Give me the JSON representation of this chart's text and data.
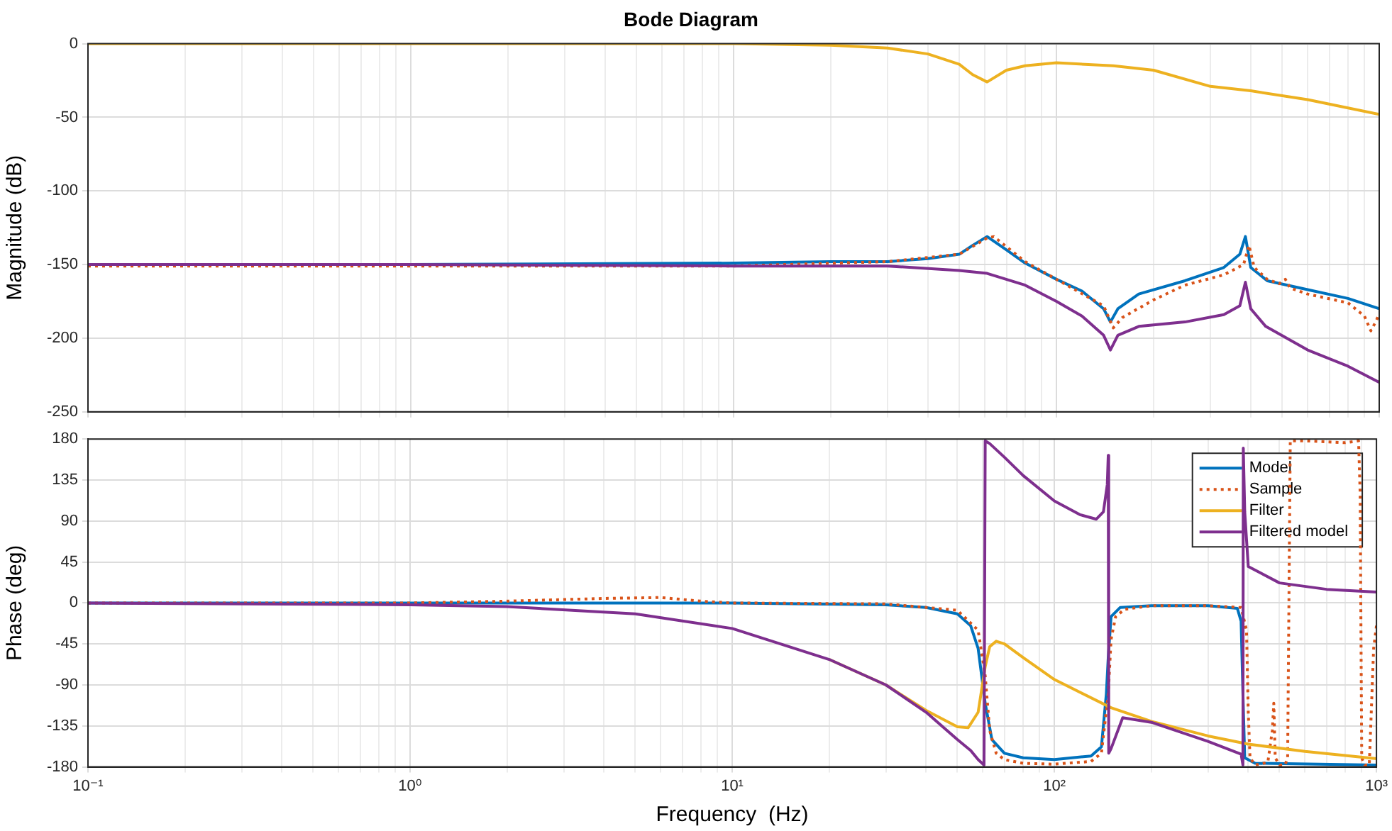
{
  "chart_data": [
    {
      "type": "line",
      "title": "Bode Diagram",
      "ylabel": "Magnitude (dB)",
      "log": "x",
      "grid": true,
      "legend": false,
      "tick_labels": "y",
      "marker": "none",
      "xlim": [
        0.1,
        1000
      ],
      "xticks": [
        0.1,
        1,
        10,
        100,
        1000
      ],
      "ylim": [
        -250,
        0
      ],
      "yticks": [
        -250,
        -200,
        -150,
        -100,
        -50,
        0
      ],
      "series": [
        {
          "color": "#0072bd",
          "line_style": "solid",
          "x": [
            0.1,
            1,
            10,
            20,
            30,
            40,
            50,
            55,
            61,
            70,
            80,
            100,
            120,
            140,
            147,
            155,
            180,
            250,
            330,
            370,
            385,
            400,
            450,
            600,
            800,
            1000
          ],
          "values": [
            -150,
            -150,
            -149,
            -148,
            -148,
            -146,
            -143,
            -137,
            -131,
            -140,
            -149,
            -160,
            -168,
            -180,
            -189,
            -180,
            -170,
            -161,
            -152,
            -143,
            -131,
            -152,
            -161,
            -167,
            -173,
            -180
          ]
        },
        {
          "color": "#d95319",
          "line_style": "dotted",
          "x": [
            0.1,
            1,
            10,
            30,
            50,
            61,
            64,
            80,
            100,
            140,
            150,
            160,
            200,
            250,
            330,
            380,
            395,
            410,
            450,
            490,
            512,
            530,
            600,
            800,
            900,
            942,
            980,
            1000
          ],
          "values": [
            -151,
            -151,
            -151,
            -148,
            -143,
            -132,
            -131,
            -148,
            -160,
            -178,
            -193,
            -186,
            -174,
            -164,
            -157,
            -150,
            -137,
            -152,
            -160,
            -163,
            -160,
            -166,
            -170,
            -176,
            -185,
            -195,
            -188,
            -183
          ]
        },
        {
          "color": "#edb120",
          "line_style": "solid",
          "x": [
            0.1,
            1,
            10,
            20,
            30,
            40,
            50,
            55,
            61,
            70,
            80,
            100,
            150,
            200,
            300,
            400,
            600,
            1000
          ],
          "values": [
            0,
            0,
            0,
            -1,
            -3,
            -7,
            -14,
            -21,
            -26,
            -18,
            -15,
            -13,
            -15,
            -18,
            -29,
            -32,
            -38,
            -48
          ]
        },
        {
          "color": "#7e2f8e",
          "line_style": "solid",
          "x": [
            0.1,
            1,
            10,
            30,
            50,
            61,
            80,
            100,
            120,
            140,
            147,
            155,
            180,
            250,
            330,
            370,
            385,
            400,
            445,
            600,
            800,
            1000
          ],
          "values": [
            -150,
            -150,
            -151,
            -151,
            -154,
            -156,
            -164,
            -175,
            -185,
            -198,
            -208,
            -198,
            -192,
            -189,
            -184,
            -178,
            -162,
            -180,
            -192,
            -208,
            -219,
            -230
          ]
        }
      ]
    },
    {
      "type": "line",
      "xlabel": "Frequency  (Hz)",
      "ylabel": "Phase (deg)",
      "log": "x",
      "grid": true,
      "legend": "top right",
      "marker": "none",
      "xlim": [
        0.1,
        1000
      ],
      "xticks": [
        {
          "value": 0.1,
          "label": "10⁻¹"
        },
        {
          "value": 1,
          "label": "10⁰"
        },
        {
          "value": 10,
          "label": "10¹"
        },
        {
          "value": 100,
          "label": "10²"
        },
        {
          "value": 1000,
          "label": "10³"
        }
      ],
      "ylim": [
        -180,
        180
      ],
      "yticks": [
        -180,
        -135,
        -90,
        -45,
        0,
        45,
        90,
        135,
        180
      ],
      "series": [
        {
          "name": "Model",
          "color": "#0072bd",
          "line_style": "solid",
          "x": [
            0.1,
            1,
            10,
            30,
            40,
            50,
            55,
            58,
            61,
            64,
            70,
            80,
            100,
            130,
            140,
            145,
            147,
            150,
            160,
            200,
            300,
            370,
            380,
            385,
            390,
            420,
            1000
          ],
          "values": [
            0,
            0,
            0,
            -2,
            -5,
            -12,
            -25,
            -50,
            -110,
            -150,
            -165,
            -170,
            -172,
            -168,
            -158,
            -100,
            -60,
            -15,
            -5,
            -3,
            -3,
            -6,
            -20,
            -100,
            -170,
            -176,
            -178
          ]
        },
        {
          "name": "Sample",
          "color": "#d95319",
          "line_style": "dotted",
          "x": [
            0.1,
            1,
            2,
            4,
            6,
            8,
            10,
            30,
            50,
            58,
            61,
            63,
            66,
            70,
            80,
            100,
            130,
            140,
            147,
            150,
            155,
            165,
            200,
            300,
            380,
            395,
            400,
            405,
            420,
            460,
            475,
            480,
            485,
            500,
            520,
            530,
            540,
            600,
            800,
            880,
            890,
            900,
            920,
            950,
            980,
            1000
          ],
          "values": [
            0,
            0,
            2,
            5,
            6,
            2,
            0,
            -1,
            -8,
            -30,
            -80,
            -140,
            -165,
            -172,
            -176,
            -177,
            -174,
            -165,
            -100,
            -40,
            -15,
            -7,
            -3,
            -3,
            -5,
            -30,
            -120,
            -170,
            -178,
            -175,
            -140,
            -110,
            -170,
            -178,
            -178,
            -170,
            178,
            178,
            176,
            178,
            120,
            -170,
            -178,
            -178,
            -50,
            -25
          ]
        },
        {
          "name": "Filter",
          "color": "#edb120",
          "line_style": "solid",
          "x": [
            20,
            30,
            40,
            50,
            54,
            58,
            61,
            63,
            66,
            70,
            80,
            100,
            150,
            200,
            300,
            400,
            600,
            1000
          ],
          "values": [
            -62,
            -90,
            -118,
            -136,
            -137,
            -120,
            -70,
            -48,
            -42,
            -45,
            -60,
            -84,
            -115,
            -130,
            -146,
            -155,
            -163,
            -171
          ]
        },
        {
          "name": "Filtered model",
          "color": "#7e2f8e",
          "line_style": "solid",
          "x": [
            0.1,
            1,
            2,
            5,
            10,
            20,
            30,
            40,
            50,
            55,
            58,
            60.5,
            61,
            63,
            70,
            80,
            100,
            120,
            135,
            142,
            146,
            147,
            147.5,
            150,
            163,
            200,
            300,
            380,
            385,
            386,
            390,
            400,
            500,
            700,
            1000
          ],
          "values": [
            0,
            -2,
            -4,
            -12,
            -28,
            -62,
            -90,
            -120,
            -150,
            -162,
            -172,
            -178,
            178,
            175,
            160,
            140,
            112,
            97,
            92,
            100,
            130,
            162,
            -165,
            -160,
            -126,
            -131,
            -152,
            -166,
            -178,
            170,
            100,
            40,
            22,
            15,
            12
          ]
        }
      ]
    }
  ]
}
